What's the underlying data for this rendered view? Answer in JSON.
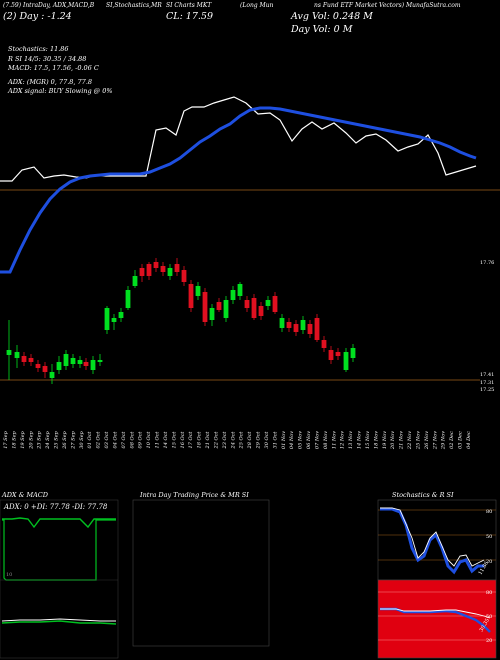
{
  "header": {
    "line1": "(7.59) IntraDay, ADX,MACD,B",
    "line1b": "SI,Stochastics,MR",
    "line1c": "SI Charts MKT",
    "line1d": "(Long Mun",
    "line1e": "ns Fund ETF Market Vectors) MunafaSutra.com",
    "line2": "(2) Day : -1.24",
    "price_close": "CL: 17.59",
    "avg_vol": "Avg Vol: 0.248 M",
    "day_vol": "Day Vol: 0   M"
  },
  "indicators": {
    "stoch": "Stochastics: 11.86",
    "rsi": "R          SI 14/5: 30.35 / 34.88",
    "macd": "MACD: 17.5, 17.56, -0.06  C",
    "adx": "ADX:                           (MGR) 0, 77.8, 77.8",
    "adx_signal": "ADX  signal:                        BUY Slowing @ 0%"
  },
  "price_axis": {
    "top_label": "17.76",
    "low_label1": "17.41",
    "low_label2": "17.31",
    "low_label3": "17.25"
  },
  "dates": [
    "17 Sep",
    "18 Sep",
    "19 Sep",
    "20 Sep",
    "23 Sep",
    "24 Sep",
    "25 Sep",
    "26 Sep",
    "27 Sep",
    "30 Sep",
    "01 Oct",
    "02 Oct",
    "03 Oct",
    "04 Oct",
    "07 Oct",
    "08 Oct",
    "09 Oct",
    "10 Oct",
    "11 Oct",
    "14 Oct",
    "15 Oct",
    "16 Oct",
    "17 Oct",
    "18 Oct",
    "21 Oct",
    "22 Oct",
    "23 Oct",
    "24 Oct",
    "25 Oct",
    "28 Oct",
    "29 Oct",
    "30 Oct",
    "31 Oct",
    "01 Nov",
    "04 Nov",
    "05 Nov",
    "06 Nov",
    "07 Nov",
    "08 Nov",
    "11 Nov",
    "12 Nov",
    "13 Nov",
    "14 Nov",
    "15 Nov",
    "18 Nov",
    "19 Nov",
    "20 Nov",
    "21 Nov",
    "22 Nov",
    "25 Nov",
    "26 Nov",
    "27 Nov",
    "29 Nov",
    "02 Dec",
    "03 Dec",
    "04 Dec"
  ],
  "panels": {
    "adx_title": "ADX  & MACD",
    "adx_value": "ADX: 0     +DI: 77.78    -DI: 77.78",
    "intraday_title": "Intra Day Trading Price  & MR                 SI",
    "stoch_title": "Stochastics & R                SI",
    "stoch_levels": [
      "80",
      "50",
      "20"
    ],
    "stoch_value": "11.86",
    "adx_low": "10",
    "rsi_levels": [
      "80",
      "50",
      "20"
    ],
    "rsi_value": "30.35"
  },
  "chart_data": {
    "type": "candlestick",
    "colors": {
      "up": "#00e020",
      "down": "#e01020",
      "ma": "#1e4fe0",
      "price_line": "#ffffff",
      "level": "#a0601a"
    }
  }
}
